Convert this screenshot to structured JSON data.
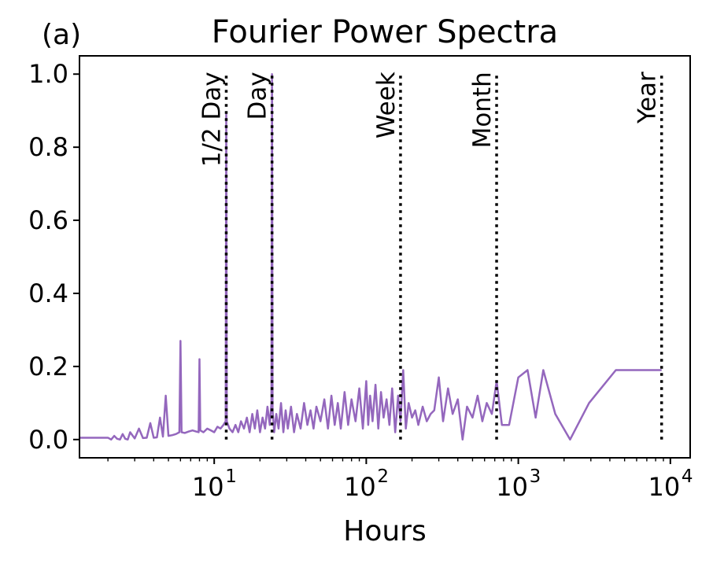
{
  "chart_data": {
    "type": "line",
    "panel_label": "(a)",
    "title": "Fourier Power Spectra",
    "xlabel": "Hours",
    "ylabel": "",
    "xscale": "log",
    "xlim": [
      1.3,
      13500
    ],
    "ylim": [
      -0.05,
      1.05
    ],
    "grid": false,
    "line_color": "#9467bd",
    "x_ticks": [
      {
        "value": 10,
        "label": "10",
        "exp": "1"
      },
      {
        "value": 100,
        "label": "10",
        "exp": "2"
      },
      {
        "value": 1000,
        "label": "10",
        "exp": "3"
      },
      {
        "value": 10000,
        "label": "10",
        "exp": "4"
      }
    ],
    "y_ticks": [
      {
        "value": 0.0,
        "label": "0.0"
      },
      {
        "value": 0.2,
        "label": "0.2"
      },
      {
        "value": 0.4,
        "label": "0.4"
      },
      {
        "value": 0.6,
        "label": "0.6"
      },
      {
        "value": 0.8,
        "label": "0.8"
      },
      {
        "value": 1.0,
        "label": "1.0"
      }
    ],
    "reference_lines": [
      {
        "x": 12,
        "label": "1/2 Day",
        "ymin": 0.0,
        "ymax": 1.0
      },
      {
        "x": 24,
        "label": "Day",
        "ymin": 0.0,
        "ymax": 1.0
      },
      {
        "x": 168,
        "label": "Week",
        "ymin": 0.0,
        "ymax": 1.0
      },
      {
        "x": 720,
        "label": "Month",
        "ymin": 0.0,
        "ymax": 1.0
      },
      {
        "x": 8760,
        "label": "Year",
        "ymin": 0.0,
        "ymax": 1.0
      }
    ],
    "series": [
      {
        "x": [
          1.3,
          2.0,
          2.1,
          2.2,
          2.3,
          2.4,
          2.5,
          2.6,
          2.7,
          2.8,
          3.0,
          3.2,
          3.4,
          3.6,
          3.8,
          4.0,
          4.2,
          4.4,
          4.6,
          4.8,
          5.0,
          5.3,
          5.6,
          5.9,
          6.0,
          6.1,
          6.4,
          6.8,
          7.2,
          7.6,
          7.9,
          8.0,
          8.1,
          8.5,
          9.0,
          9.5,
          10.0,
          10.5,
          11.0,
          11.5,
          11.9,
          12.0,
          12.1,
          12.6,
          13.2,
          13.8,
          14.4,
          15.0,
          15.7,
          16.4,
          17.1,
          17.8,
          18.5,
          19.2,
          20.0,
          20.8,
          21.6,
          22.4,
          23.2,
          23.8,
          24.0,
          24.2,
          24.8,
          25.6,
          26.5,
          27.5,
          28.5,
          29.5,
          30.5,
          32.0,
          33.5,
          35.0,
          37.0,
          39.0,
          41.0,
          43.0,
          45.0,
          47.0,
          50.0,
          53.0,
          56.0,
          59.0,
          62.0,
          65.0,
          68.0,
          72.0,
          76.0,
          80.0,
          85.0,
          90.0,
          95.0,
          100.0,
          103.0,
          106.0,
          110.0,
          115.0,
          120.0,
          125.0,
          130.0,
          136.0,
          142.0,
          148.0,
          155.0,
          162.0,
          168.0,
          175.0,
          182.0,
          190.0,
          200.0,
          210.0,
          220.0,
          235.0,
          250.0,
          265.0,
          280.0,
          300.0,
          320.0,
          345.0,
          370.0,
          400.0,
          430.0,
          460.0,
          500.0,
          540.0,
          580.0,
          620.0,
          670.0,
          720.0,
          780.0,
          870.0,
          1000.0,
          1150.0,
          1300.0,
          1460.0,
          1750.0,
          2190.0,
          2920.0,
          4380.0,
          8760.0
        ],
        "y": [
          0.005,
          0.005,
          0.0,
          0.01,
          0.002,
          0.0,
          0.015,
          0.002,
          0.0,
          0.02,
          0.003,
          0.03,
          0.004,
          0.005,
          0.045,
          0.005,
          0.006,
          0.06,
          0.008,
          0.12,
          0.01,
          0.012,
          0.015,
          0.02,
          0.27,
          0.02,
          0.018,
          0.022,
          0.025,
          0.022,
          0.02,
          0.22,
          0.025,
          0.02,
          0.03,
          0.025,
          0.02,
          0.035,
          0.03,
          0.04,
          0.05,
          0.89,
          0.05,
          0.03,
          0.02,
          0.04,
          0.02,
          0.05,
          0.03,
          0.06,
          0.02,
          0.07,
          0.03,
          0.08,
          0.02,
          0.06,
          0.03,
          0.09,
          0.04,
          0.1,
          1.0,
          0.08,
          0.02,
          0.07,
          0.03,
          0.1,
          0.02,
          0.08,
          0.03,
          0.09,
          0.02,
          0.07,
          0.03,
          0.1,
          0.04,
          0.08,
          0.03,
          0.09,
          0.05,
          0.11,
          0.03,
          0.12,
          0.04,
          0.1,
          0.03,
          0.13,
          0.04,
          0.11,
          0.05,
          0.14,
          0.03,
          0.16,
          0.04,
          0.12,
          0.05,
          0.15,
          0.03,
          0.13,
          0.06,
          0.11,
          0.04,
          0.14,
          0.02,
          0.12,
          0.05,
          0.19,
          0.03,
          0.1,
          0.06,
          0.08,
          0.04,
          0.09,
          0.05,
          0.07,
          0.08,
          0.17,
          0.05,
          0.14,
          0.07,
          0.11,
          0.0,
          0.09,
          0.06,
          0.12,
          0.05,
          0.1,
          0.07,
          0.16,
          0.04,
          0.04,
          0.17,
          0.19,
          0.06,
          0.19,
          0.07,
          0.0,
          0.1,
          0.19,
          0.19
        ]
      }
    ]
  }
}
